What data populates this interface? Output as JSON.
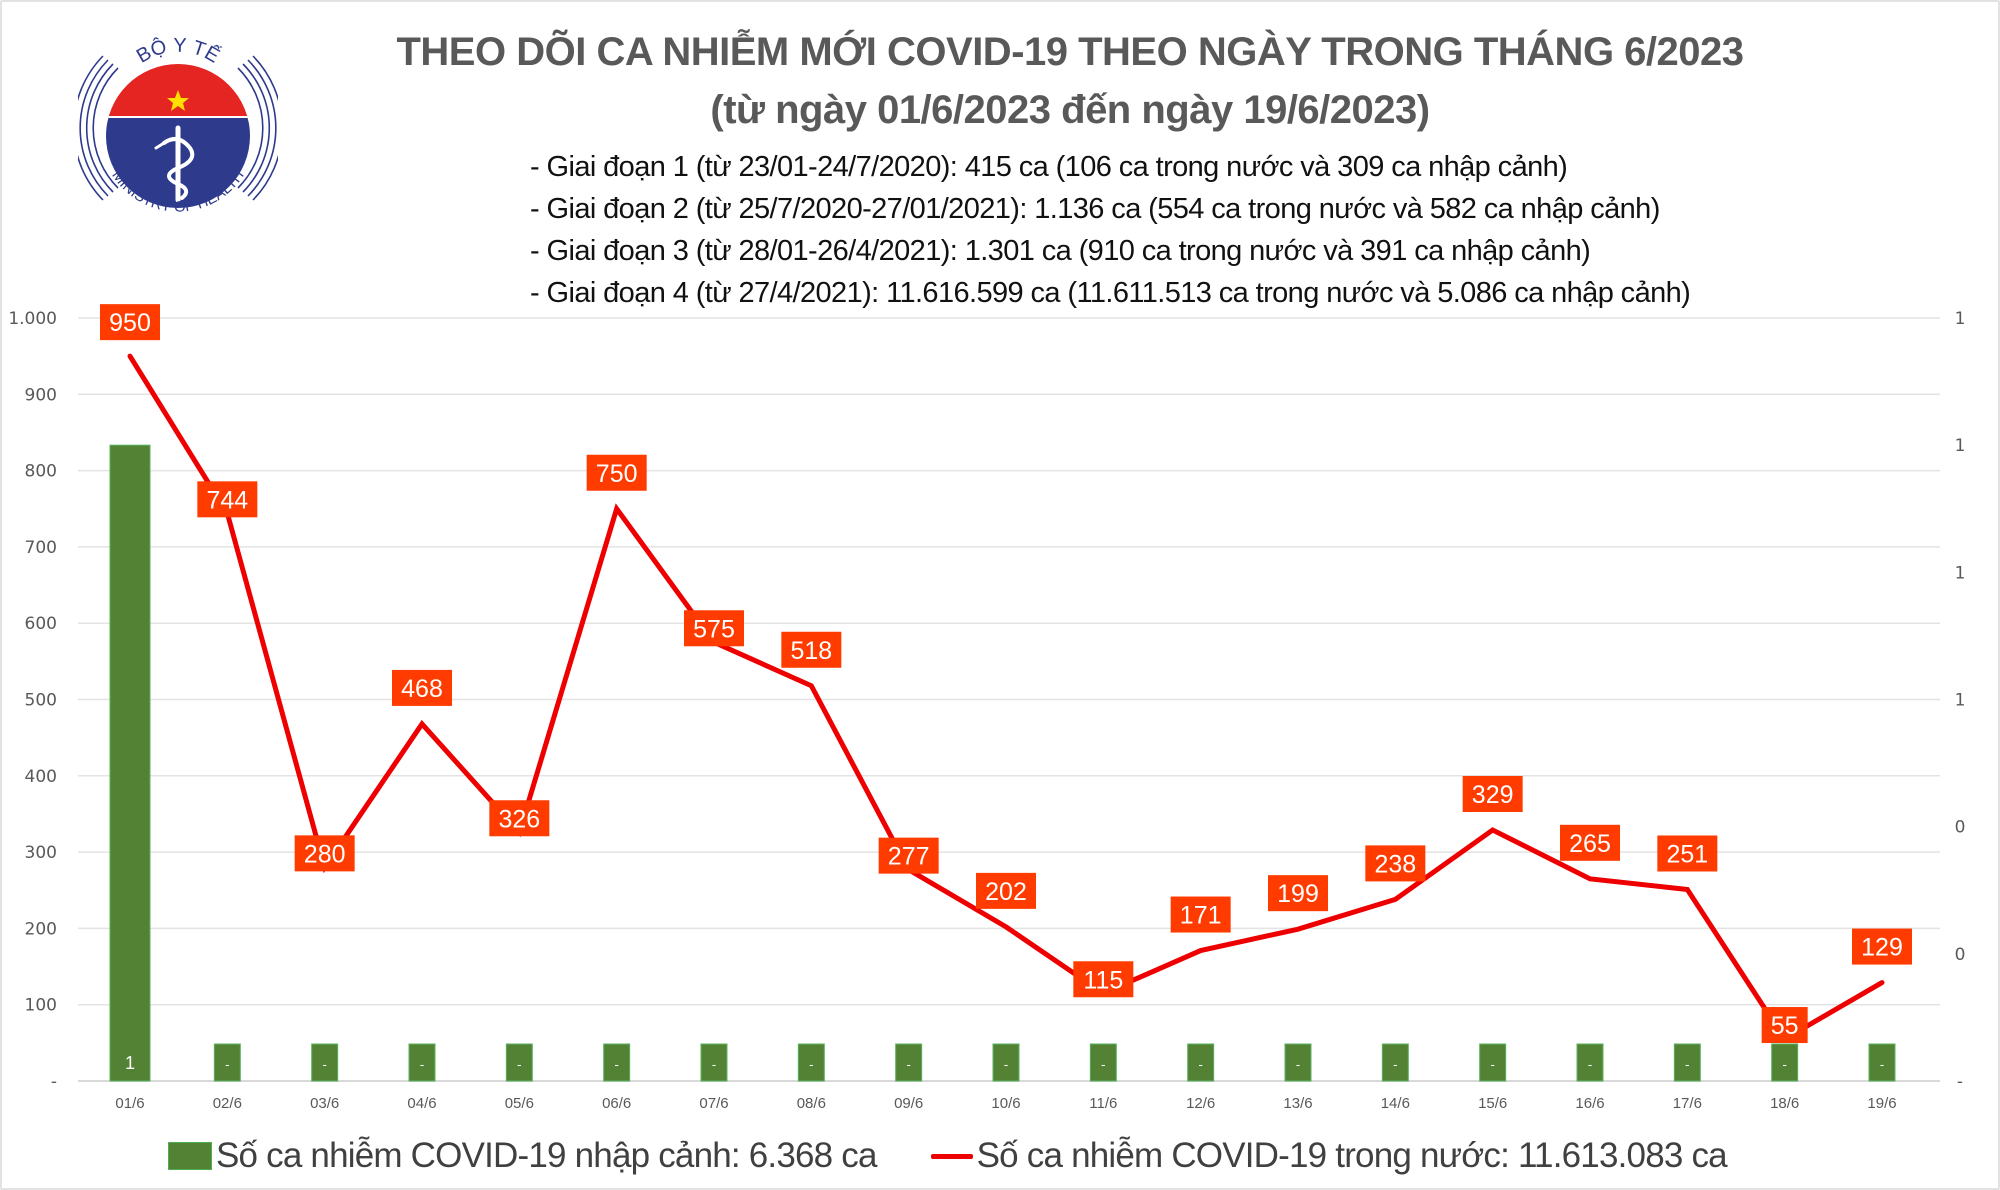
{
  "logo": {
    "top_text": "BỘ Y TẾ",
    "bottom_text": "MINISTRY OF HEALTH",
    "colors": {
      "blue": "#2e3a8c",
      "red": "#e52521",
      "star": "#ffde00"
    }
  },
  "header": {
    "title_line1": "THEO DÕI CA NHIỄM MỚI COVID-19 THEO NGÀY TRONG THÁNG 6/2023",
    "title_line2": "(từ ngày 01/6/2023 đến ngày 19/6/2023)",
    "phases": [
      "- Giai đoạn 1 (từ 23/01-24/7/2020): 415 ca (106 ca trong nước và 309 ca nhập cảnh)",
      "- Giai đoạn 2 (từ 25/7/2020-27/01/2021): 1.136 ca (554 ca trong nước và 582 ca nhập cảnh)",
      "- Giai đoạn 3 (từ 28/01-26/4/2021): 1.301 ca (910 ca trong nước và 391 ca nhập cảnh)",
      "- Giai đoạn 4 (từ 27/4/2021): 11.616.599 ca (11.611.513 ca trong nước và 5.086 ca nhập cảnh)"
    ]
  },
  "legend": {
    "bar_label": "Số ca nhiễm COVID-19 nhập cảnh: 6.368 ca",
    "line_label": "Số ca nhiễm COVID-19 trong nước: 11.613.083 ca"
  },
  "chart_data": {
    "type": "bar+line",
    "title": "THEO DÕI CA NHIỄM MỚI COVID-19 THEO NGÀY TRONG THÁNG 6/2023",
    "subtitle": "(từ ngày 01/6/2023 đến ngày 19/6/2023)",
    "xlabel": "",
    "ylabel": "",
    "categories": [
      "01/6",
      "02/6",
      "03/6",
      "04/6",
      "05/6",
      "06/6",
      "07/6",
      "08/6",
      "09/6",
      "10/6",
      "11/6",
      "12/6",
      "13/6",
      "14/6",
      "15/6",
      "16/6",
      "17/6",
      "18/6",
      "19/6"
    ],
    "series": [
      {
        "name": "Số ca nhiễm COVID-19 nhập cảnh: 6.368 ca",
        "type": "bar",
        "axis": "right",
        "color": "#548235",
        "values": [
          1,
          0,
          0,
          0,
          0,
          0,
          0,
          0,
          0,
          0,
          0,
          0,
          0,
          0,
          0,
          0,
          0,
          0,
          0
        ],
        "data_labels": [
          "1",
          "-",
          "-",
          "-",
          "-",
          "-",
          "-",
          "-",
          "-",
          "-",
          "-",
          "-",
          "-",
          "-",
          "-",
          "-",
          "-",
          "-",
          "-"
        ]
      },
      {
        "name": "Số ca nhiễm COVID-19 trong nước: 11.613.083 ca",
        "type": "line",
        "axis": "left",
        "color": "#ee0000",
        "label_bg": "#ff3b00",
        "values": [
          950,
          744,
          280,
          468,
          326,
          750,
          575,
          518,
          277,
          202,
          115,
          171,
          199,
          238,
          329,
          265,
          251,
          55,
          129
        ],
        "data_labels": [
          "950",
          "744",
          "280",
          "468",
          "326",
          "750",
          "575",
          "518",
          "277",
          "202",
          "115",
          "171",
          "199",
          "238",
          "329",
          "265",
          "251",
          "55",
          "129"
        ]
      }
    ],
    "y_left": {
      "range": [
        0,
        1000
      ],
      "ticks": [
        0,
        100,
        200,
        300,
        400,
        500,
        600,
        700,
        800,
        900,
        1000
      ],
      "tick_labels": [
        "-",
        "100",
        "200",
        "300",
        "400",
        "500",
        "600",
        "700",
        "800",
        "900",
        "1.000"
      ]
    },
    "y_right": {
      "range": [
        0,
        1.2
      ],
      "ticks": [
        0,
        0.2,
        0.4,
        0.6,
        0.8,
        1.0,
        1.2
      ],
      "tick_labels": [
        "-",
        "0",
        "0",
        "1",
        "1",
        "1",
        "1"
      ]
    },
    "grid": true,
    "legend_position": "bottom"
  }
}
